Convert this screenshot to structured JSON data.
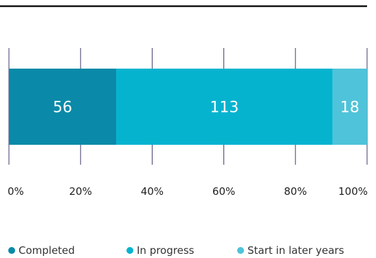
{
  "chart_data": {
    "type": "bar",
    "orientation": "horizontal",
    "stacked": true,
    "normalized": true,
    "categories": [
      ""
    ],
    "series": [
      {
        "name": "Completed",
        "values": [
          56
        ],
        "color": "#0a8aa8"
      },
      {
        "name": "In progress",
        "values": [
          113
        ],
        "color": "#06b3cf"
      },
      {
        "name": "Start in later years",
        "values": [
          18
        ],
        "color": "#4fc3d9"
      }
    ],
    "x_ticks": [
      "0%",
      "20%",
      "40%",
      "60%",
      "80%",
      "100%"
    ],
    "xlim": [
      0,
      100
    ],
    "grid": true,
    "legend_position": "bottom",
    "title": "",
    "xlabel": "",
    "ylabel": ""
  }
}
